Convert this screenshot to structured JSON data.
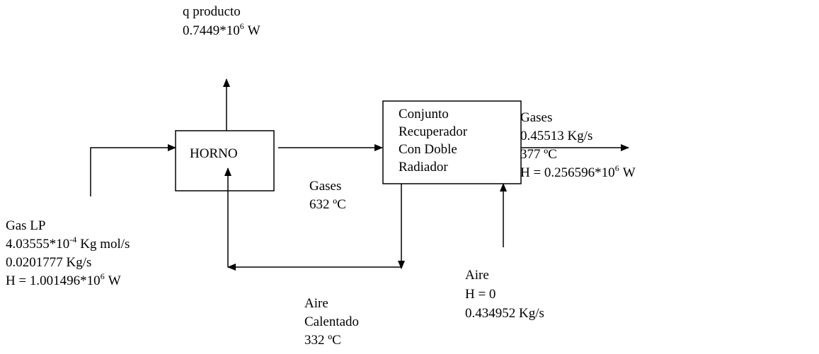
{
  "nodes": [
    {
      "label": "HORNO"
    },
    {
      "label": [
        "Conjunto",
        "Recuperador",
        "Con  Doble",
        "Radiador"
      ]
    }
  ],
  "labels": [
    {
      "lines": [
        "q producto",
        {
          "base": "0.7449*10",
          "exp": "6",
          "unit": "W"
        }
      ]
    },
    {
      "lines": [
        "Gas LP",
        {
          "base": "4.03555*10",
          "exp": "-4",
          "unit": "Kg mol/s"
        },
        "0.0201777 Kg/s",
        {
          "base": "H = 1.001496*10",
          "exp": "6",
          "unit": "W"
        }
      ]
    },
    {
      "lines": [
        "Gases",
        "632 ºC"
      ]
    },
    {
      "lines": [
        "Gases",
        "0.45513 Kg/s",
        "377 ºC",
        {
          "base": "H = 0.256596*10",
          "exp": "6",
          "unit": "W"
        }
      ]
    },
    {
      "lines": [
        "Aire",
        "Calentado",
        "332 ºC"
      ]
    },
    {
      "lines": [
        "Aire",
        "H = 0",
        "0.434952 Kg/s"
      ]
    }
  ]
}
